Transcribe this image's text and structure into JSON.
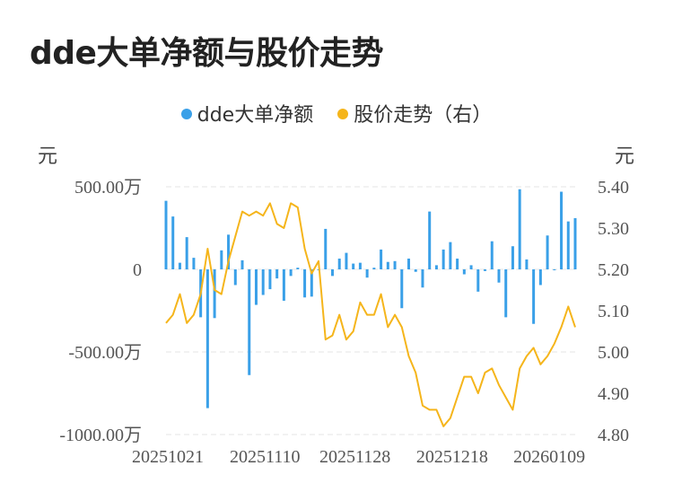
{
  "title": "dde大单净额与股价走势",
  "legend": {
    "series1": "dde大单净额",
    "series2": "股价走势（右）"
  },
  "units": {
    "left": "元",
    "right": "元"
  },
  "colors": {
    "bar": "#3AA0E8",
    "line": "#F5B51B",
    "grid": "#e6e6e6"
  },
  "chart_data": {
    "type": "bar+line",
    "x_tick_labels": [
      "20251021",
      "20251110",
      "20251128",
      "20251218",
      "20260109"
    ],
    "left_axis": {
      "ticks": [
        "500.00万",
        "0",
        "-500.00万",
        "-1000.00万"
      ],
      "ylim": [
        -1000,
        500
      ],
      "unit_label": "元"
    },
    "right_axis": {
      "ticks": [
        "5.40",
        "5.30",
        "5.20",
        "5.10",
        "5.00",
        "4.90",
        "4.80"
      ],
      "ylim": [
        4.8,
        5.4
      ],
      "unit_label": "元"
    },
    "series": [
      {
        "name": "dde大单净额",
        "type": "bar",
        "axis": "left",
        "unit": "万",
        "values": [
          415,
          320,
          40,
          195,
          70,
          -290,
          -840,
          -295,
          115,
          210,
          -95,
          55,
          -640,
          -215,
          -155,
          -120,
          -55,
          -190,
          -40,
          10,
          -170,
          -165,
          0,
          245,
          -40,
          65,
          100,
          35,
          40,
          -50,
          10,
          120,
          45,
          50,
          -235,
          65,
          -15,
          -110,
          350,
          25,
          120,
          165,
          65,
          -30,
          25,
          -135,
          -10,
          170,
          -80,
          -290,
          140,
          485,
          60,
          -330,
          -95,
          205,
          0,
          470,
          290,
          310
        ]
      },
      {
        "name": "股价走势（右）",
        "type": "line",
        "axis": "right",
        "values": [
          5.07,
          5.09,
          5.14,
          5.07,
          5.09,
          5.14,
          5.25,
          5.15,
          5.14,
          5.22,
          5.28,
          5.34,
          5.33,
          5.34,
          5.33,
          5.36,
          5.31,
          5.3,
          5.36,
          5.35,
          5.25,
          5.19,
          5.22,
          5.03,
          5.04,
          5.09,
          5.03,
          5.05,
          5.12,
          5.09,
          5.09,
          5.14,
          5.06,
          5.09,
          5.06,
          4.99,
          4.95,
          4.87,
          4.86,
          4.86,
          4.82,
          4.84,
          4.89,
          4.94,
          4.94,
          4.9,
          4.95,
          4.96,
          4.92,
          4.89,
          4.86,
          4.96,
          4.99,
          5.01,
          4.97,
          4.99,
          5.02,
          5.06,
          5.11,
          5.06
        ]
      }
    ]
  }
}
